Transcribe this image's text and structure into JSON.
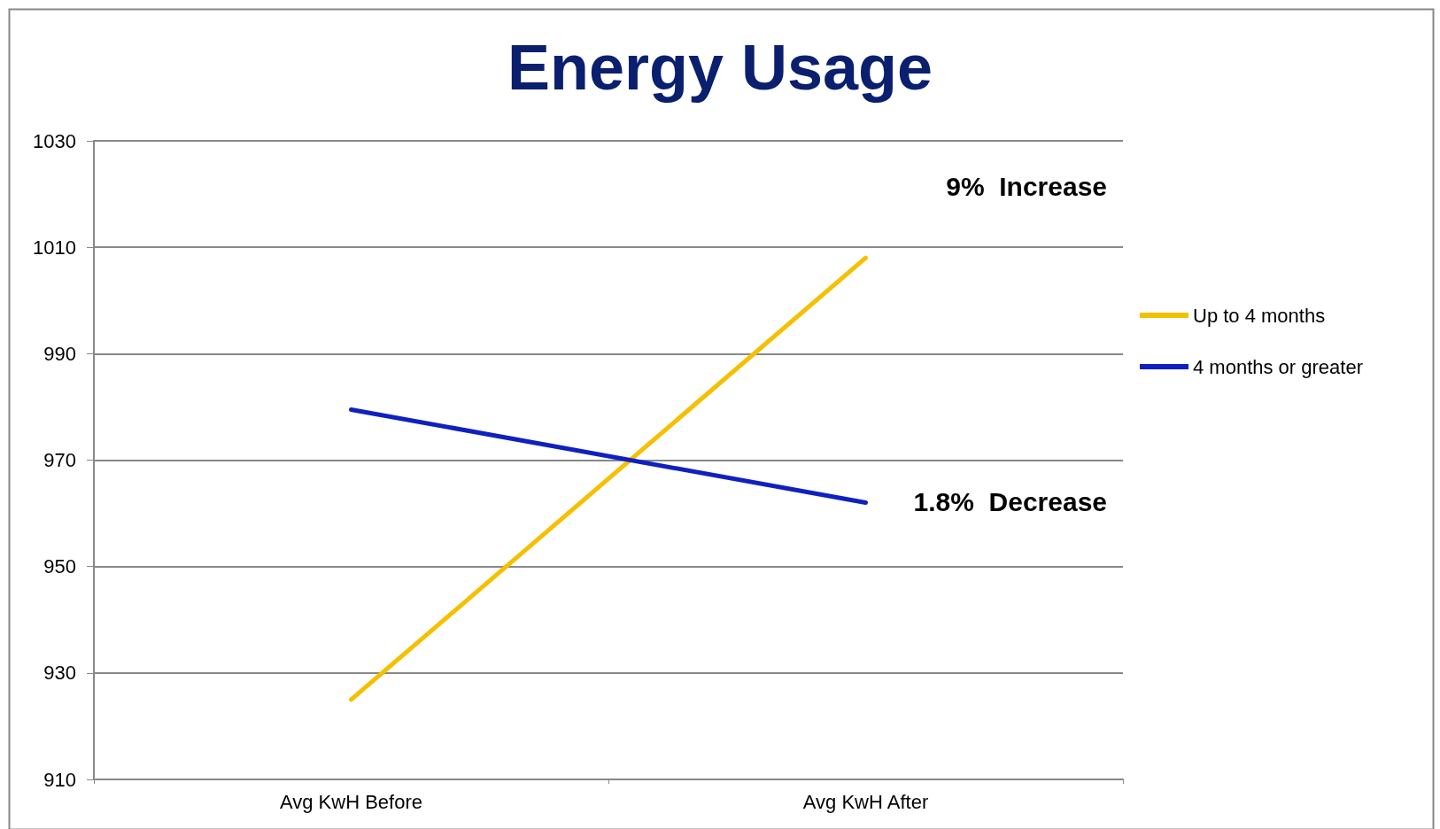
{
  "chart_data": {
    "type": "line",
    "title": "Energy Usage",
    "categories": [
      "Avg KwH Before",
      "Avg KwH After"
    ],
    "series": [
      {
        "name": "Up to 4 months",
        "color": "#f5c000",
        "values": [
          925,
          1008
        ]
      },
      {
        "name": "4 months or greater",
        "color": "#1020c0",
        "values": [
          979.5,
          962
        ]
      }
    ],
    "ylim": [
      910,
      1030
    ],
    "yticks": [
      910,
      930,
      950,
      970,
      990,
      1010,
      1030
    ],
    "grid": "y",
    "legend": "right",
    "marker": "none",
    "line_style": "solid",
    "annotations": [
      "9%  Increase",
      "1.8%  Decrease"
    ]
  }
}
